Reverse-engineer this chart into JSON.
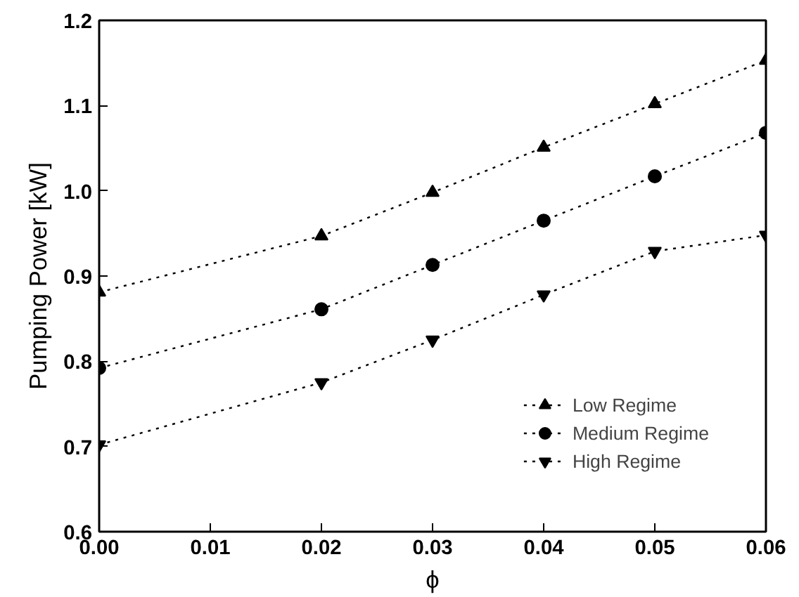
{
  "chart_data": {
    "type": "line",
    "xlabel": "ϕ",
    "ylabel": "Pumping Power [kW]",
    "x": [
      0.0,
      0.02,
      0.03,
      0.04,
      0.05,
      0.06
    ],
    "series": [
      {
        "name": "Low Regime",
        "color": "#000000",
        "marker": "triangle",
        "values": [
          0.881,
          0.947,
          0.998,
          1.051,
          1.102,
          1.153
        ]
      },
      {
        "name": "Medium Regime",
        "color": "#000000",
        "marker": "circle",
        "values": [
          0.792,
          0.861,
          0.913,
          0.965,
          1.017,
          1.068
        ]
      },
      {
        "name": "High Regime",
        "color": "#000000",
        "marker": "triangle",
        "values": [
          0.702,
          0.775,
          0.825,
          0.878,
          0.929,
          0.948
        ]
      }
    ],
    "line_style": "dotted",
    "grid": false,
    "legend": "bottom right",
    "xlim": [
      0.0,
      0.06
    ],
    "xticks": [
      {
        "value": 0.0,
        "label": "0.00"
      },
      {
        "value": 0.01,
        "label": "0.01"
      },
      {
        "value": 0.02,
        "label": "0.02"
      },
      {
        "value": 0.03,
        "label": "0.03"
      },
      {
        "value": 0.04,
        "label": "0.04"
      },
      {
        "value": 0.05,
        "label": "0.05"
      },
      {
        "value": 0.06,
        "label": "0.06"
      }
    ],
    "ylim": [
      0.6,
      1.2
    ],
    "yticks": [
      {
        "value": 0.6,
        "label": "0.6"
      },
      {
        "value": 0.7,
        "label": "0.7"
      },
      {
        "value": 0.8,
        "label": "0.8"
      },
      {
        "value": 0.9,
        "label": "0.9"
      },
      {
        "value": 1.0,
        "label": "1.0"
      },
      {
        "value": 1.1,
        "label": "1.1"
      },
      {
        "value": 1.2,
        "label": "1.2"
      }
    ]
  }
}
